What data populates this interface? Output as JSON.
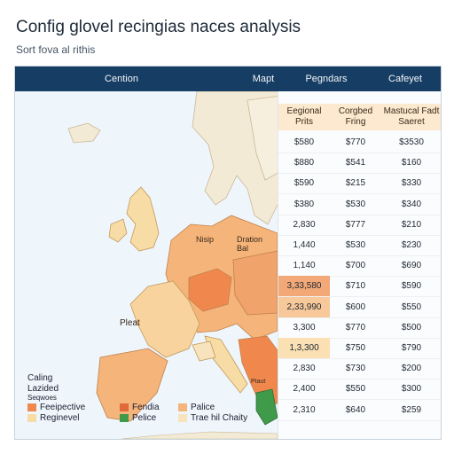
{
  "title": "Config glovel recingias naces analysis",
  "subtitle": "Sort fova al rithis",
  "header": {
    "col1": "Cention",
    "col2": "Mapt",
    "col3": "Pegndars",
    "col4": "Cafeyet"
  },
  "subheaders": {
    "a": "Eegional Prits",
    "b": "Corgbed Fring",
    "c": "Mastucal Fadt Saeret"
  },
  "map_labels": {
    "center": "Nisip",
    "east": "Dration Bal",
    "west": "Pleat",
    "south_lower": "Ptaut"
  },
  "legend": {
    "title1": "Caling",
    "title2": "Lazided",
    "title3": "Seqwoes",
    "items": [
      {
        "label": "Feeipective",
        "color": "#f0884e"
      },
      {
        "label": "Reginevel",
        "color": "#f8dca6"
      },
      {
        "label": "Fendia",
        "color": "#e06a3a"
      },
      {
        "label": "Pelice",
        "color": "#3f9a4a"
      },
      {
        "label": "Palice",
        "color": "#f4b47a"
      },
      {
        "label": "Trae hil Chaity",
        "color": "#f7e3bc"
      }
    ]
  },
  "table_rows": [
    {
      "a": "$580",
      "b": "$770",
      "c": "$3530",
      "highlight": ""
    },
    {
      "a": "$880",
      "b": "$541",
      "c": "$160",
      "highlight": ""
    },
    {
      "a": "$590",
      "b": "$215",
      "c": "$330",
      "highlight": ""
    },
    {
      "a": "$380",
      "b": "$530",
      "c": "$340",
      "highlight": ""
    },
    {
      "a": "2,830",
      "b": "$777",
      "c": "$210",
      "highlight": ""
    },
    {
      "a": "1,440",
      "b": "$530",
      "c": "$230",
      "highlight": ""
    },
    {
      "a": "1,140",
      "b": "$700",
      "c": "$690",
      "highlight": ""
    },
    {
      "a": "3,33,580",
      "b": "$710",
      "c": "$590",
      "highlight": "#f2a877"
    },
    {
      "a": "2,33,990",
      "b": "$600",
      "c": "$550",
      "highlight": "#f7c89a"
    },
    {
      "a": "3,300",
      "b": "$770",
      "c": "$500",
      "highlight": ""
    },
    {
      "a": "1,3,300",
      "b": "$750",
      "c": "$790",
      "highlight": "#fbe0b3"
    },
    {
      "a": "2,830",
      "b": "$730",
      "c": "$200",
      "highlight": ""
    },
    {
      "a": "2,400",
      "b": "$550",
      "c": "$300",
      "highlight": ""
    },
    {
      "a": "2,310",
      "b": "$640",
      "c": "$259",
      "highlight": ""
    }
  ]
}
